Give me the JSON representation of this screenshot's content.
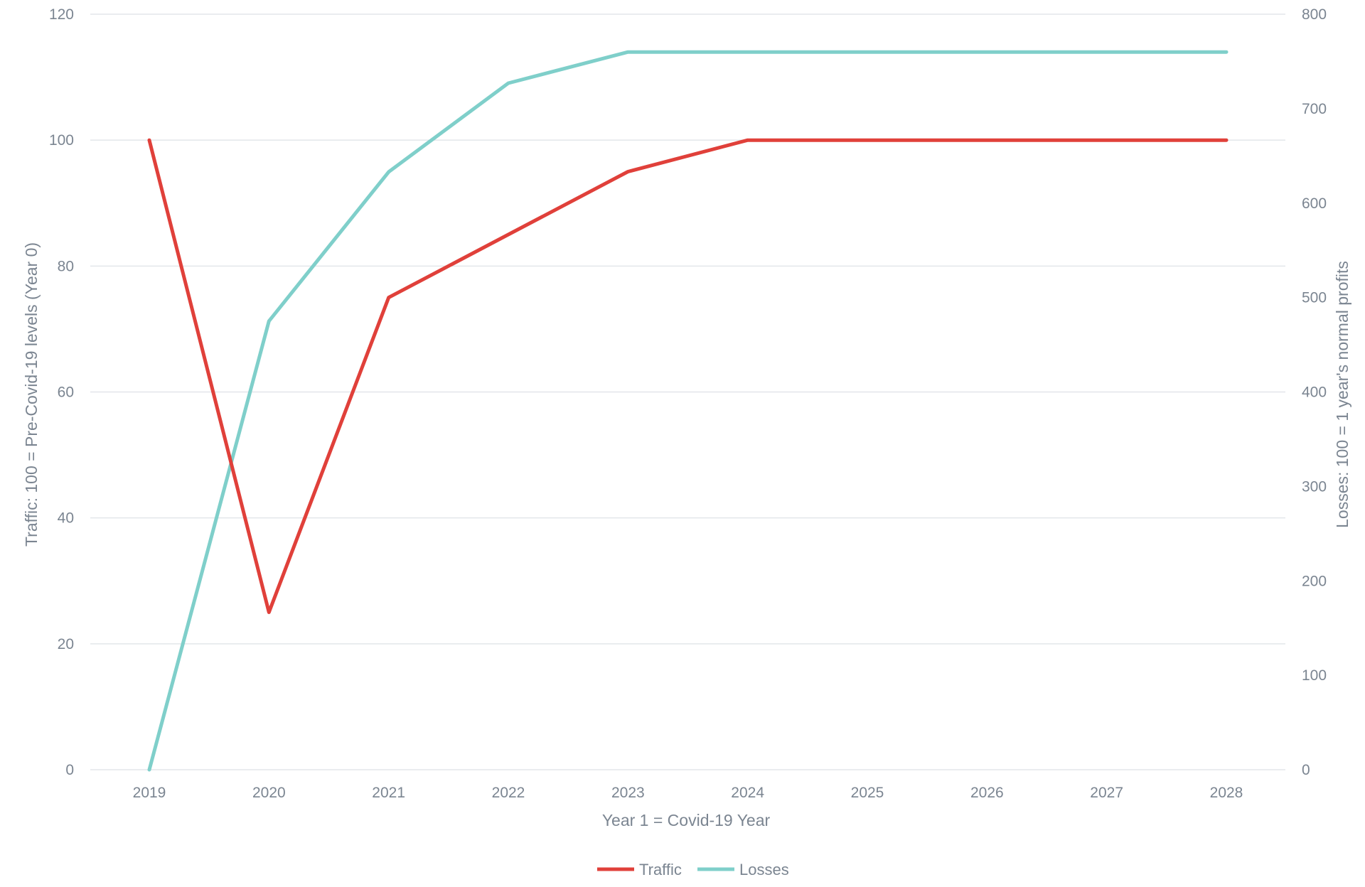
{
  "chart_data": {
    "type": "line",
    "x": [
      "2019",
      "2020",
      "2021",
      "2022",
      "2023",
      "2024",
      "2025",
      "2026",
      "2027",
      "2028"
    ],
    "xlabel": "Year 1 = Covid-19 Year",
    "ylabel_left": "Traffic: 100 = Pre-Covid-19 levels (Year 0)",
    "ylabel_right": "Losses: 100 = 1 year's normal profits",
    "ylim_left": [
      0,
      120
    ],
    "ylim_right": [
      0,
      800
    ],
    "yticks_left": [
      "0",
      "20",
      "40",
      "60",
      "80",
      "100",
      "120"
    ],
    "yticks_right": [
      "0",
      "100",
      "200",
      "300",
      "400",
      "500",
      "600",
      "700",
      "800"
    ],
    "grid": true,
    "legend_position": "bottom-center",
    "series": [
      {
        "name": "Traffic",
        "axis": "left",
        "color": "#e0403a",
        "values": [
          100,
          25,
          75,
          85,
          95,
          100,
          100,
          100,
          100,
          100
        ]
      },
      {
        "name": "Losses",
        "axis": "right",
        "color": "#7fcfca",
        "values": [
          0,
          475,
          633,
          727,
          760,
          760,
          760,
          760,
          760,
          760
        ]
      }
    ]
  }
}
